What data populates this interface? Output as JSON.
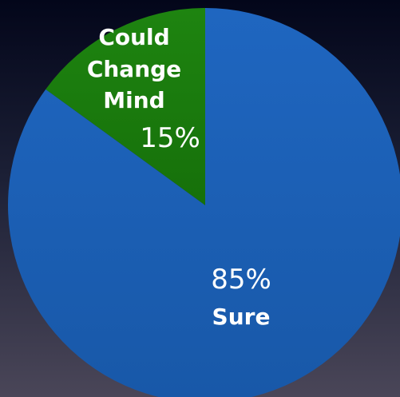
{
  "chart_data": {
    "type": "pie",
    "slices": [
      {
        "label_lines": [
          "Could",
          "Change",
          "Mind"
        ],
        "value": 15,
        "value_label": "15%",
        "color": "#1b7a0e"
      },
      {
        "label_lines": [
          "Sure"
        ],
        "value": 85,
        "value_label": "85%",
        "color": "#1c5fb5"
      }
    ]
  }
}
